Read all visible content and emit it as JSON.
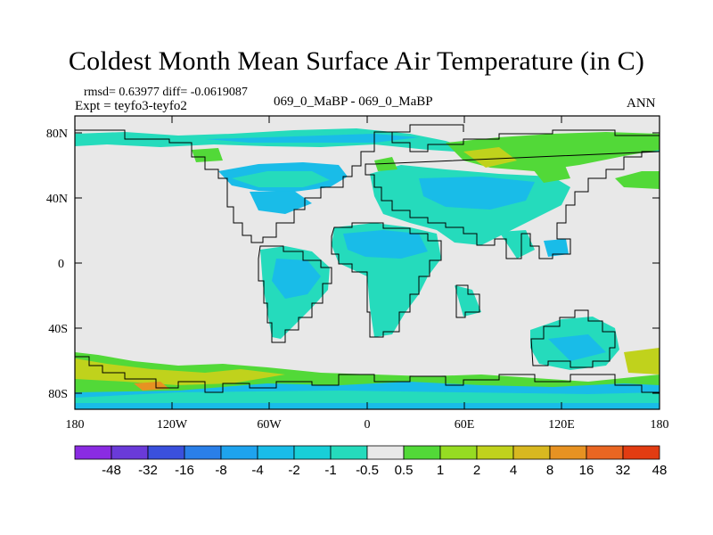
{
  "title": "Coldest Month Mean Surface Air Temperature (in C)",
  "stats": {
    "line1": "rmsd= 0.63977 diff= -0.0619087",
    "line2": "Expt = teyfo3-teyfo2",
    "center": "069_0_MaBP - 069_0_MaBP",
    "season": "ANN"
  },
  "axes": {
    "lat_labels": [
      "80N",
      "40N",
      "0",
      "40S",
      "80S"
    ],
    "lon_labels": [
      "180",
      "120W",
      "60W",
      "0",
      "60E",
      "120E",
      "180"
    ]
  },
  "colorbar": {
    "colors": [
      "#8a2be2",
      "#6a3ad9",
      "#3a50dd",
      "#2a7fe8",
      "#1ea3ee",
      "#19bce8",
      "#18cfd8",
      "#25dbbc",
      "#e8e8e8",
      "#52d938",
      "#96dc22",
      "#c0d21c",
      "#d8b820",
      "#e79222",
      "#e96622",
      "#e23c12"
    ],
    "labels": [
      "-48",
      "-32",
      "-16",
      "-8",
      "-4",
      "-2",
      "-1",
      "-0.5",
      "0.5",
      "1",
      "2",
      "4",
      "8",
      "16",
      "32",
      "48"
    ]
  },
  "map_colors": {
    "ocean_bg": "#e8e8e8",
    "anomaly_cool": "#25dbbc",
    "anomaly_cyan": "#19bce8",
    "anomaly_green": "#52d938",
    "anomaly_yellow": "#c0d21c",
    "anomaly_orange": "#e79222"
  }
}
